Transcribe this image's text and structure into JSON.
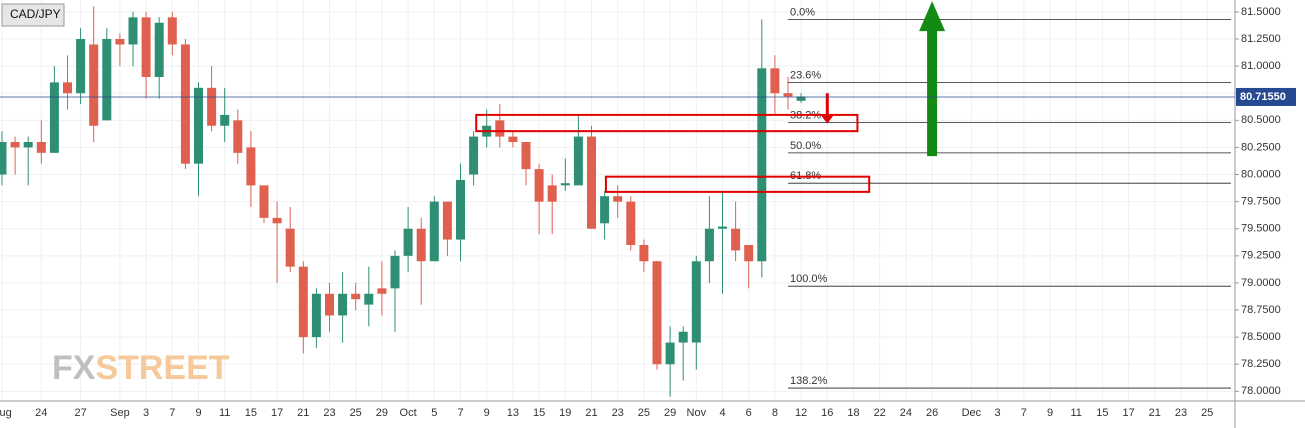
{
  "chart_data": {
    "type": "candlestick",
    "title": "CAD/JPY",
    "watermark": [
      "FX",
      "STREET"
    ],
    "open": [
      80.0,
      80.3,
      80.25,
      80.3,
      80.2,
      80.85,
      80.75,
      81.2,
      80.5,
      81.25,
      81.2,
      81.45,
      80.9,
      81.45,
      81.2,
      80.1,
      80.8,
      80.45,
      80.5,
      80.25,
      79.9,
      79.6,
      79.5,
      79.15,
      78.5,
      78.9,
      78.7,
      78.9,
      78.8,
      78.95,
      78.95,
      79.25,
      79.5,
      79.2,
      79.75,
      79.4,
      80.0,
      80.35,
      80.5,
      80.35,
      80.3,
      80.05,
      79.9,
      79.9,
      79.9,
      80.35,
      79.55,
      79.8,
      79.75,
      79.35,
      79.2,
      78.25,
      78.45,
      78.45,
      79.2,
      79.5,
      79.5,
      79.35,
      79.2,
      80.98,
      80.75,
      80.68
    ],
    "high": [
      80.4,
      80.35,
      80.35,
      80.5,
      81.0,
      81.1,
      81.35,
      81.55,
      81.35,
      81.3,
      81.5,
      81.5,
      81.45,
      81.5,
      81.25,
      80.85,
      81.0,
      80.8,
      80.6,
      80.4,
      79.9,
      79.75,
      79.7,
      79.2,
      78.95,
      79.0,
      79.1,
      79.0,
      79.15,
      79.2,
      79.3,
      79.7,
      79.6,
      79.8,
      79.75,
      80.1,
      80.4,
      80.6,
      80.65,
      80.4,
      80.3,
      80.1,
      80.0,
      80.15,
      80.55,
      80.45,
      79.85,
      79.9,
      79.8,
      79.4,
      79.2,
      78.6,
      78.6,
      79.25,
      79.8,
      79.85,
      79.75,
      79.35,
      81.43,
      81.1,
      80.9,
      80.75
    ],
    "low": [
      79.9,
      80.0,
      79.9,
      80.1,
      80.2,
      80.6,
      80.65,
      80.3,
      80.5,
      81.0,
      81.0,
      80.7,
      80.7,
      81.1,
      80.05,
      79.8,
      80.4,
      80.3,
      80.1,
      79.7,
      79.55,
      79.0,
      79.1,
      78.35,
      78.4,
      78.55,
      78.45,
      78.75,
      78.6,
      78.7,
      78.55,
      79.1,
      78.8,
      79.2,
      79.25,
      79.2,
      79.9,
      80.25,
      80.25,
      80.25,
      79.9,
      79.45,
      79.45,
      79.85,
      79.9,
      79.5,
      79.4,
      79.6,
      79.3,
      79.1,
      78.2,
      77.95,
      78.1,
      78.2,
      79.0,
      78.9,
      79.2,
      78.95,
      79.05,
      80.55,
      80.6,
      80.66
    ],
    "close": [
      80.3,
      80.25,
      80.3,
      80.2,
      80.85,
      80.75,
      81.25,
      80.45,
      81.25,
      81.2,
      81.45,
      80.9,
      81.4,
      81.2,
      80.1,
      80.8,
      80.45,
      80.55,
      80.2,
      79.9,
      79.6,
      79.55,
      79.15,
      78.5,
      78.9,
      78.7,
      78.9,
      78.85,
      78.9,
      78.9,
      79.25,
      79.5,
      79.2,
      79.75,
      79.4,
      79.95,
      80.35,
      80.45,
      80.35,
      80.3,
      80.05,
      79.75,
      79.75,
      79.92,
      80.35,
      79.5,
      79.8,
      79.75,
      79.35,
      79.2,
      78.25,
      78.45,
      78.55,
      79.2,
      79.5,
      79.52,
      79.3,
      79.2,
      80.98,
      80.75,
      80.72,
      80.72
    ],
    "up_color": "#2f8f74",
    "down_color": "#e0604f",
    "ylim": [
      77.92,
      81.61
    ],
    "yticks": [
      {
        "value": 78.0,
        "label": "78.0000"
      },
      {
        "value": 78.25,
        "label": "78.2500"
      },
      {
        "value": 78.5,
        "label": "78.5000"
      },
      {
        "value": 78.75,
        "label": "78.7500"
      },
      {
        "value": 79.0,
        "label": "79.0000"
      },
      {
        "value": 79.25,
        "label": "79.2500"
      },
      {
        "value": 79.5,
        "label": "79.5000"
      },
      {
        "value": 79.75,
        "label": "79.7500"
      },
      {
        "value": 80.0,
        "label": "80.0000"
      },
      {
        "value": 80.25,
        "label": "80.2500"
      },
      {
        "value": 80.5,
        "label": "80.5000"
      },
      {
        "value": 80.75,
        "label": "80.7500"
      },
      {
        "value": 81.0,
        "label": "81.0000"
      },
      {
        "value": 81.25,
        "label": "81.2500"
      },
      {
        "value": 81.5,
        "label": "81.5000"
      }
    ],
    "xticks": [
      {
        "value": 0,
        "label": "Aug"
      },
      {
        "value": 3,
        "label": "24"
      },
      {
        "value": 6,
        "label": "27"
      },
      {
        "value": 9,
        "label": "Sep"
      },
      {
        "value": 11,
        "label": "3"
      },
      {
        "value": 13,
        "label": "7"
      },
      {
        "value": 15,
        "label": "9"
      },
      {
        "value": 17,
        "label": "11"
      },
      {
        "value": 19,
        "label": "15"
      },
      {
        "value": 21,
        "label": "17"
      },
      {
        "value": 23,
        "label": "21"
      },
      {
        "value": 25,
        "label": "23"
      },
      {
        "value": 27,
        "label": "25"
      },
      {
        "value": 29,
        "label": "29"
      },
      {
        "value": 31,
        "label": "Oct"
      },
      {
        "value": 33,
        "label": "5"
      },
      {
        "value": 35,
        "label": "7"
      },
      {
        "value": 37,
        "label": "9"
      },
      {
        "value": 39,
        "label": "13"
      },
      {
        "value": 41,
        "label": "15"
      },
      {
        "value": 43,
        "label": "19"
      },
      {
        "value": 45,
        "label": "21"
      },
      {
        "value": 47,
        "label": "23"
      },
      {
        "value": 49,
        "label": "25"
      },
      {
        "value": 51,
        "label": "29"
      },
      {
        "value": 53,
        "label": "Nov"
      },
      {
        "value": 55,
        "label": "4"
      },
      {
        "value": 57,
        "label": "6"
      },
      {
        "value": 59,
        "label": "8"
      },
      {
        "value": 61,
        "label": "12"
      },
      {
        "value": 63,
        "label": "16"
      },
      {
        "value": 65,
        "label": "18"
      },
      {
        "value": 67,
        "label": "22"
      },
      {
        "value": 69,
        "label": "24"
      },
      {
        "value": 71,
        "label": "26"
      },
      {
        "value": 74,
        "label": "Dec"
      },
      {
        "value": 76,
        "label": "3"
      },
      {
        "value": 78,
        "label": "7"
      },
      {
        "value": 80,
        "label": "9"
      },
      {
        "value": 82,
        "label": "11"
      },
      {
        "value": 84,
        "label": "15"
      },
      {
        "value": 86,
        "label": "17"
      },
      {
        "value": 88,
        "label": "21"
      },
      {
        "value": 90,
        "label": "23"
      },
      {
        "value": 92,
        "label": "25"
      }
    ],
    "grid": true,
    "last_price": {
      "value": 80.7155,
      "label": "80.71550",
      "color": "#264a92"
    },
    "fib_levels": [
      {
        "value": 81.43,
        "label": "0.0%"
      },
      {
        "value": 80.85,
        "label": "23.6%"
      },
      {
        "value": 80.48,
        "label": "38.2%"
      },
      {
        "value": 80.2,
        "label": "50.0%"
      },
      {
        "value": 79.92,
        "label": "61.8%"
      },
      {
        "value": 78.97,
        "label": "100.0%"
      },
      {
        "value": 78.03,
        "label": "138.2%"
      }
    ],
    "zones": [
      {
        "x": [
          36.2,
          65.3
        ],
        "y": [
          80.4,
          80.55
        ]
      },
      {
        "x": [
          46.1,
          66.2
        ],
        "y": [
          79.84,
          79.98
        ]
      }
    ],
    "arrows": [
      {
        "x": 63,
        "from": 80.75,
        "to": 80.47,
        "color": "#e00000"
      },
      {
        "x": 71,
        "from": 80.17,
        "to": 81.6,
        "color": "#138a13"
      }
    ]
  }
}
